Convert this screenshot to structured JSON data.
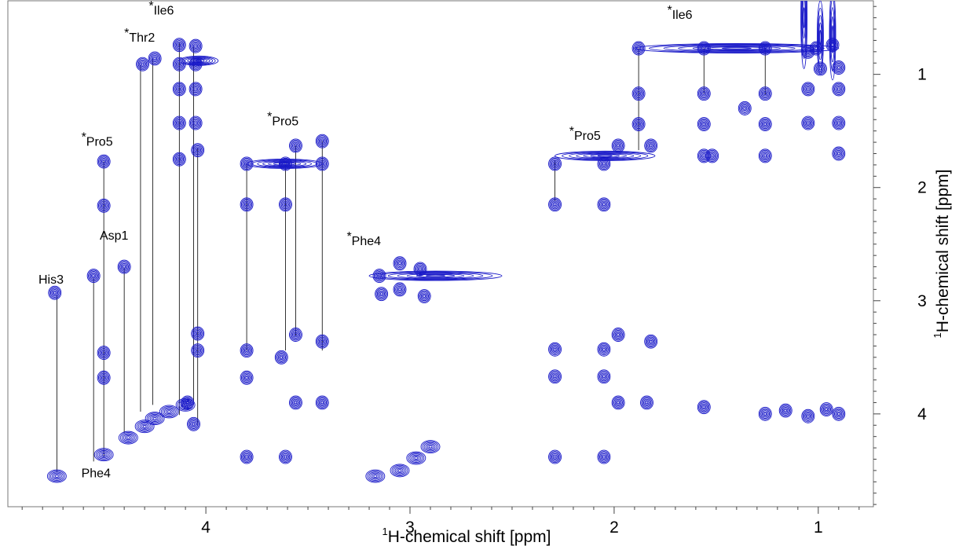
{
  "chart_data": {
    "type": "scatter",
    "title": "",
    "xlabel": {
      "sup": "1",
      "text": "H-chemical shift [ppm]"
    },
    "ylabel": {
      "sup": "1",
      "text": "H-chemical shift [ppm]"
    },
    "xlim": [
      4.97,
      0.73
    ],
    "ylim": [
      0.35,
      4.82
    ],
    "x_ticks": [
      4,
      3,
      2,
      1
    ],
    "y_ticks": [
      1,
      2,
      3,
      4
    ],
    "colors": {
      "contour": "#1818c8",
      "axis": "#444444",
      "link": "#000000"
    },
    "annotations": [
      {
        "text": "His3",
        "x": 4.82,
        "y": 2.85
      },
      {
        "text": "Asp1",
        "x": 4.52,
        "y": 2.46
      },
      {
        "text": "Phe4",
        "x": 4.61,
        "y": 4.56
      },
      {
        "star": "*",
        "text": "Pro5",
        "x": 4.61,
        "y": 1.63
      },
      {
        "star": "*",
        "text": "Thr2",
        "x": 4.4,
        "y": 0.71
      },
      {
        "star": "*",
        "text": "Ile6",
        "x": 4.28,
        "y": 0.47
      },
      {
        "star": "*",
        "text": "Pro5",
        "x": 3.7,
        "y": 1.45
      },
      {
        "star": "*",
        "text": "Phe4",
        "x": 3.31,
        "y": 2.51
      },
      {
        "star": "*",
        "text": "Pro5",
        "x": 2.22,
        "y": 1.58
      },
      {
        "star": "*",
        "text": "Ile6",
        "x": 1.74,
        "y": 0.51
      }
    ],
    "links": [
      {
        "x": 4.73,
        "y1": 2.95,
        "y2": 4.51
      },
      {
        "x": 4.55,
        "y1": 2.8,
        "y2": 4.42
      },
      {
        "x": 4.5,
        "y1": 1.77,
        "y2": 4.38
      },
      {
        "x": 4.4,
        "y1": 2.71,
        "y2": 4.17
      },
      {
        "x": 4.32,
        "y1": 0.92,
        "y2": 3.98
      },
      {
        "x": 4.26,
        "y1": 0.86,
        "y2": 3.92
      },
      {
        "x": 4.13,
        "y1": 0.72,
        "y2": 4.01
      },
      {
        "x": 4.06,
        "y1": 0.76,
        "y2": 3.9
      },
      {
        "x": 4.04,
        "y1": 1.65,
        "y2": 4.1
      },
      {
        "x": 3.8,
        "y1": 1.79,
        "y2": 3.44
      },
      {
        "x": 3.61,
        "y1": 1.79,
        "y2": 3.44
      },
      {
        "x": 3.56,
        "y1": 1.63,
        "y2": 3.31
      },
      {
        "x": 3.43,
        "y1": 1.59,
        "y2": 3.44
      },
      {
        "x": 2.29,
        "y1": 1.76,
        "y2": 2.12
      },
      {
        "x": 1.88,
        "y1": 0.77,
        "y2": 1.67
      },
      {
        "x": 1.56,
        "y1": 0.77,
        "y2": 1.17
      },
      {
        "x": 1.26,
        "y1": 0.77,
        "y2": 1.18
      }
    ],
    "cross_peaks": [
      {
        "x": 4.74,
        "y": 2.93
      },
      {
        "x": 4.55,
        "y": 2.78
      },
      {
        "x": 4.5,
        "y": 1.77
      },
      {
        "x": 4.5,
        "y": 2.16
      },
      {
        "x": 4.5,
        "y": 3.46
      },
      {
        "x": 4.5,
        "y": 3.68
      },
      {
        "x": 4.4,
        "y": 2.7
      },
      {
        "x": 4.31,
        "y": 0.91
      },
      {
        "x": 4.25,
        "y": 0.86
      },
      {
        "x": 4.13,
        "y": 0.74
      },
      {
        "x": 4.13,
        "y": 0.91
      },
      {
        "x": 4.13,
        "y": 1.13
      },
      {
        "x": 4.13,
        "y": 1.43
      },
      {
        "x": 4.13,
        "y": 1.75
      },
      {
        "x": 4.05,
        "y": 0.75
      },
      {
        "x": 4.05,
        "y": 0.91
      },
      {
        "x": 4.05,
        "y": 1.13
      },
      {
        "x": 4.05,
        "y": 1.43
      },
      {
        "x": 4.04,
        "y": 1.67
      },
      {
        "x": 4.04,
        "y": 3.29
      },
      {
        "x": 4.04,
        "y": 3.44
      },
      {
        "x": 4.09,
        "y": 3.9
      },
      {
        "x": 4.06,
        "y": 4.09
      },
      {
        "x": 3.8,
        "y": 1.79
      },
      {
        "x": 3.8,
        "y": 2.15
      },
      {
        "x": 3.8,
        "y": 3.44
      },
      {
        "x": 3.8,
        "y": 3.68
      },
      {
        "x": 3.8,
        "y": 4.38
      },
      {
        "x": 3.61,
        "y": 1.79
      },
      {
        "x": 3.61,
        "y": 2.15
      },
      {
        "x": 3.63,
        "y": 3.5
      },
      {
        "x": 3.56,
        "y": 1.63
      },
      {
        "x": 3.56,
        "y": 3.3
      },
      {
        "x": 3.56,
        "y": 3.9
      },
      {
        "x": 3.43,
        "y": 1.59
      },
      {
        "x": 3.43,
        "y": 1.79
      },
      {
        "x": 3.43,
        "y": 3.36
      },
      {
        "x": 3.43,
        "y": 3.9
      },
      {
        "x": 3.61,
        "y": 4.38
      },
      {
        "x": 3.15,
        "y": 2.78
      },
      {
        "x": 3.14,
        "y": 2.94
      },
      {
        "x": 3.05,
        "y": 2.9
      },
      {
        "x": 2.93,
        "y": 2.96
      },
      {
        "x": 3.05,
        "y": 2.67
      },
      {
        "x": 2.95,
        "y": 2.72
      },
      {
        "x": 2.29,
        "y": 1.79
      },
      {
        "x": 2.29,
        "y": 2.15
      },
      {
        "x": 2.29,
        "y": 3.43
      },
      {
        "x": 2.29,
        "y": 3.67
      },
      {
        "x": 2.29,
        "y": 4.38
      },
      {
        "x": 2.05,
        "y": 1.79
      },
      {
        "x": 2.05,
        "y": 2.15
      },
      {
        "x": 2.05,
        "y": 3.43
      },
      {
        "x": 2.05,
        "y": 3.67
      },
      {
        "x": 2.05,
        "y": 4.38
      },
      {
        "x": 1.98,
        "y": 1.63
      },
      {
        "x": 1.98,
        "y": 3.3
      },
      {
        "x": 1.98,
        "y": 3.9
      },
      {
        "x": 1.82,
        "y": 1.63
      },
      {
        "x": 1.82,
        "y": 3.36
      },
      {
        "x": 1.84,
        "y": 3.9
      },
      {
        "x": 1.88,
        "y": 0.77
      },
      {
        "x": 1.88,
        "y": 1.17
      },
      {
        "x": 1.88,
        "y": 1.44
      },
      {
        "x": 1.56,
        "y": 0.77
      },
      {
        "x": 1.56,
        "y": 1.17
      },
      {
        "x": 1.56,
        "y": 1.44
      },
      {
        "x": 1.56,
        "y": 1.72
      },
      {
        "x": 1.56,
        "y": 3.94
      },
      {
        "x": 1.26,
        "y": 0.77
      },
      {
        "x": 1.26,
        "y": 1.17
      },
      {
        "x": 1.26,
        "y": 1.44
      },
      {
        "x": 1.26,
        "y": 1.72
      },
      {
        "x": 1.26,
        "y": 4.0
      },
      {
        "x": 1.36,
        "y": 1.3
      },
      {
        "x": 1.05,
        "y": 0.8
      },
      {
        "x": 1.05,
        "y": 1.13
      },
      {
        "x": 1.05,
        "y": 1.43
      },
      {
        "x": 1.01,
        "y": 0.77
      },
      {
        "x": 0.99,
        "y": 0.95
      },
      {
        "x": 0.93,
        "y": 0.74
      },
      {
        "x": 0.9,
        "y": 0.94
      },
      {
        "x": 0.9,
        "y": 1.13
      },
      {
        "x": 0.9,
        "y": 1.43
      },
      {
        "x": 0.9,
        "y": 1.7
      },
      {
        "x": 0.96,
        "y": 3.96
      },
      {
        "x": 0.9,
        "y": 4.0
      },
      {
        "x": 1.05,
        "y": 4.02
      },
      {
        "x": 1.16,
        "y": 3.97
      },
      {
        "x": 1.52,
        "y": 1.72
      }
    ],
    "diagonal": [
      {
        "x": 4.73,
        "y": 4.55
      },
      {
        "x": 4.5,
        "y": 4.36
      },
      {
        "x": 4.38,
        "y": 4.21
      },
      {
        "x": 4.3,
        "y": 4.11
      },
      {
        "x": 4.25,
        "y": 4.04
      },
      {
        "x": 4.18,
        "y": 3.98
      },
      {
        "x": 4.1,
        "y": 3.92
      },
      {
        "x": 3.17,
        "y": 4.55
      },
      {
        "x": 3.05,
        "y": 4.5
      },
      {
        "x": 2.97,
        "y": 4.39
      },
      {
        "x": 2.9,
        "y": 4.29
      }
    ],
    "ridges": [
      {
        "x1": 2.29,
        "x2": 1.8,
        "y": 1.72
      },
      {
        "x1": 1.9,
        "x2": 0.9,
        "y": 0.77
      },
      {
        "x1": 3.2,
        "x2": 2.55,
        "y": 2.78
      },
      {
        "x1": 3.8,
        "x2": 3.43,
        "y": 1.79
      },
      {
        "x1": 4.13,
        "x2": 3.94,
        "y": 0.88
      }
    ],
    "methyl_streaks": [
      {
        "x": 0.93,
        "y1": 0.25,
        "y2": 1.05
      },
      {
        "x": 0.99,
        "y1": 0.35,
        "y2": 1.0
      },
      {
        "x": 1.07,
        "y1": 0.05,
        "y2": 0.95
      }
    ]
  }
}
